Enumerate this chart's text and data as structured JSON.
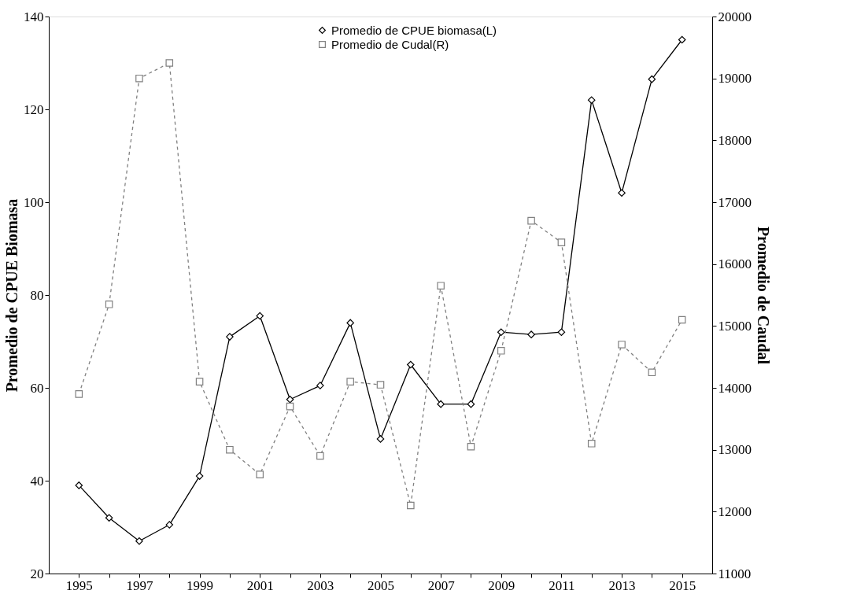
{
  "chart_data": {
    "type": "line",
    "ylabel": "Promedio de CPUE Biomasa",
    "y2label": "Promedio de Caudal",
    "x": [
      1995,
      1996,
      1997,
      1998,
      1999,
      2000,
      2001,
      2002,
      2003,
      2004,
      2005,
      2006,
      2007,
      2008,
      2009,
      2010,
      2011,
      2012,
      2013,
      2014,
      2015
    ],
    "series": [
      {
        "name": "Promedio de CPUE biomasa(L)",
        "color": "#000000",
        "marker": "diamond",
        "line_style": "solid",
        "values": [
          39,
          32,
          27,
          30.5,
          41,
          71,
          75.5,
          57.5,
          60.5,
          74,
          49,
          65,
          56.5,
          56.5,
          72,
          71.5,
          72,
          122,
          102,
          126.5,
          135
        ]
      },
      {
        "name": "Promedio de Cudal(R)",
        "color": "#808080",
        "marker": "square",
        "line_style": "dashed",
        "axis": "y2",
        "values": [
          13900,
          15350,
          19000,
          19250,
          14100,
          13000,
          12600,
          13700,
          12900,
          14100,
          14050,
          12100,
          15650,
          13050,
          14600,
          16700,
          16350,
          13100,
          14700,
          14250,
          15100
        ]
      }
    ],
    "xlim": [
      1994,
      2016
    ],
    "xticks": [
      1995,
      {
        "value": 1996,
        "label": null
      },
      1997,
      {
        "value": 1998,
        "label": null
      },
      1999,
      {
        "value": 2000,
        "label": null
      },
      2001,
      {
        "value": 2002,
        "label": null
      },
      2003,
      {
        "value": 2004,
        "label": null
      },
      2005,
      {
        "value": 2006,
        "label": null
      },
      2007,
      {
        "value": 2008,
        "label": null
      },
      2009,
      {
        "value": 2010,
        "label": null
      },
      2011,
      {
        "value": 2012,
        "label": null
      },
      2013,
      {
        "value": 2014,
        "label": null
      },
      2015
    ],
    "ylim": [
      20,
      140
    ],
    "yticks": [
      20,
      40,
      60,
      80,
      100,
      120,
      140
    ],
    "y2lim": [
      11000,
      20000
    ],
    "y2ticks": [
      11000,
      12000,
      13000,
      14000,
      15000,
      16000,
      17000,
      18000,
      19000,
      20000
    ],
    "grid": false,
    "legend": "top"
  }
}
